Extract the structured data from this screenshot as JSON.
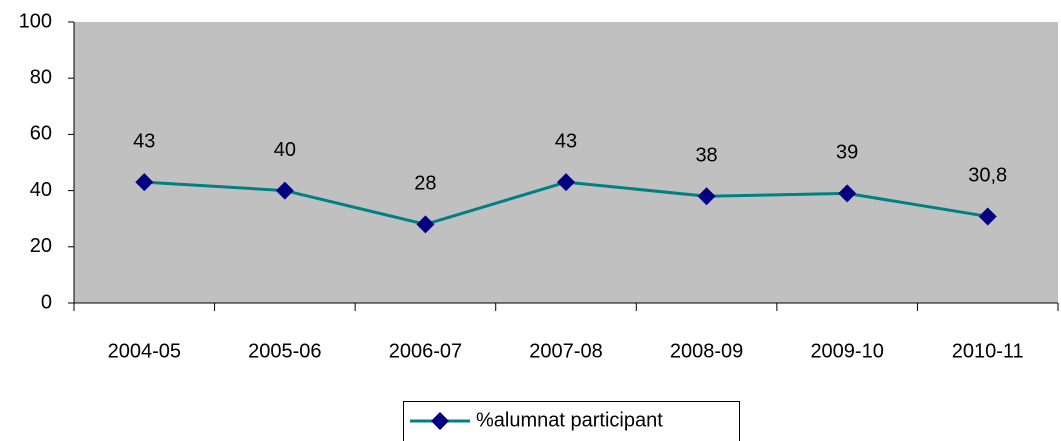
{
  "chart_data": {
    "type": "line",
    "categories": [
      "2004-05",
      "2005-06",
      "2006-07",
      "2007-08",
      "2008-09",
      "2009-10",
      "2010-11"
    ],
    "series": [
      {
        "name": "%alumnat participant",
        "color": "#008080",
        "marker_color": "#000080",
        "values": [
          43,
          40,
          28,
          43,
          38,
          39,
          30.8
        ],
        "value_labels": [
          "43",
          "40",
          "28",
          "43",
          "38",
          "39",
          "30,8"
        ]
      }
    ],
    "ylim": [
      0,
      100
    ],
    "yticks": [
      0,
      20,
      40,
      60,
      80,
      100
    ],
    "plot_background": "#c0c0c0",
    "legend": "bottom"
  }
}
